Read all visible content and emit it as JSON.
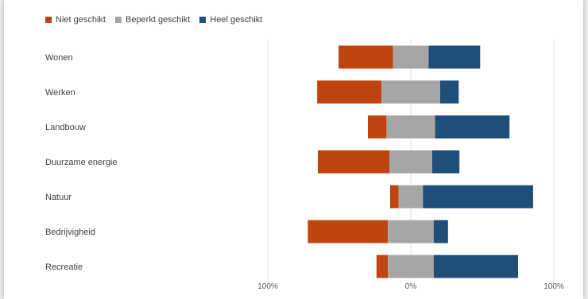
{
  "chart_data": {
    "type": "bar",
    "orientation": "horizontal",
    "stacked": "diverging",
    "categories": [
      "Wonen",
      "Werken",
      "Landbouw",
      "Duurzame energie",
      "Natuur",
      "Bedrijvigheid",
      "Recreatie"
    ],
    "series": [
      {
        "name": "Niet geschikt",
        "color": "#c0440f",
        "values": [
          38,
          45,
          13,
          50,
          6,
          56,
          8
        ]
      },
      {
        "name": "Beperkt geschikt",
        "color": "#a6a6a6",
        "values": [
          25,
          41,
          34,
          30,
          17,
          32,
          32
        ]
      },
      {
        "name": "Heel geschikt",
        "color": "#1f4e79",
        "values": [
          36,
          13,
          52,
          19,
          77,
          10,
          59
        ]
      }
    ],
    "x_ticks": [
      "100%",
      "0%",
      "100%"
    ],
    "xlim": [
      -100,
      100
    ],
    "legend_position": "top-left",
    "grid": "vertical"
  }
}
